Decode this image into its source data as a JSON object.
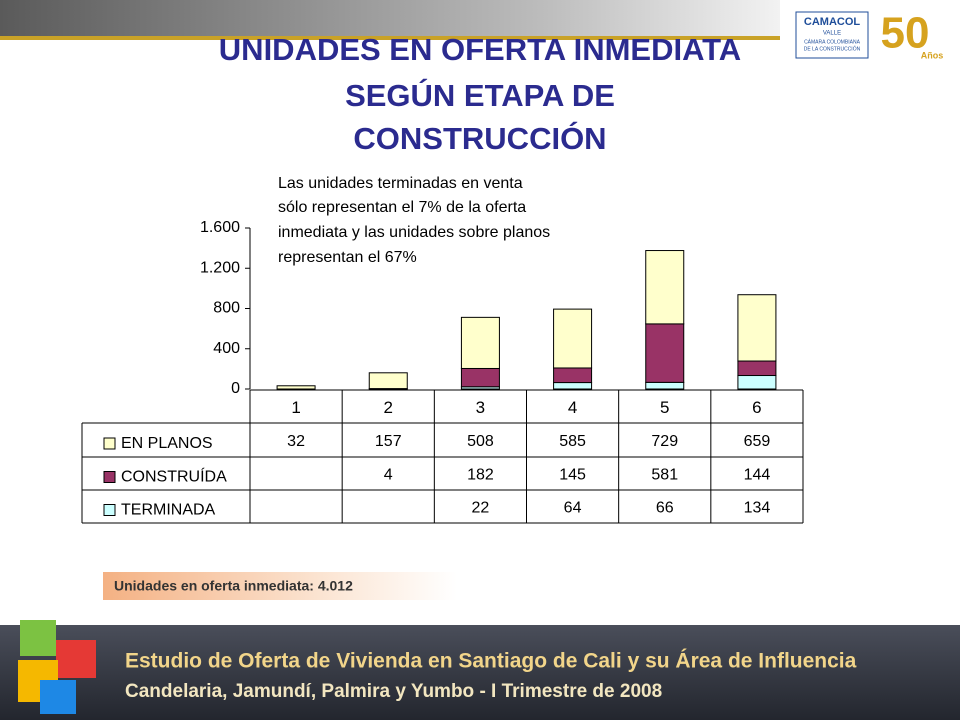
{
  "chart_data": {
    "type": "bar",
    "stacked": true,
    "title": [
      "UNIDADES EN OFERTA INMEDIATA",
      "SEGÚN ETAPA DE",
      "CONSTRUCCIÓN"
    ],
    "annotation": [
      "Las unidades terminadas en venta",
      "sólo representan el 7% de la oferta",
      "inmediata y las unidades sobre planos",
      "representan el 67%"
    ],
    "categories": [
      "1",
      "2",
      "3",
      "4",
      "5",
      "6"
    ],
    "series": [
      {
        "name": "EN PLANOS",
        "color": "#ffffcc",
        "values": [
          32,
          157,
          508,
          585,
          729,
          659
        ]
      },
      {
        "name": "CONSTRUÍDA",
        "color": "#993366",
        "values": [
          null,
          4,
          182,
          145,
          581,
          144
        ]
      },
      {
        "name": "TERMINADA",
        "color": "#ccffff",
        "values": [
          null,
          null,
          22,
          64,
          66,
          134
        ]
      }
    ],
    "ylim": [
      0,
      1600
    ],
    "yticks": [
      0,
      400,
      800,
      {
        "value": 1200,
        "label": "1.200"
      },
      {
        "value": 1600,
        "label": "1.600"
      }
    ],
    "grid": false
  },
  "summary": "Unidades en oferta inmediata: 4.012",
  "logo": {
    "name": "CAMACOL",
    "region": "VALLE",
    "subtitle": [
      "CÁMARA COLOMBIANA",
      "DE LA CONSTRUCCIÓN"
    ],
    "anniversary": "50",
    "anniversary_unit": "Años"
  },
  "banner": {
    "line1": "Estudio de Oferta de Vivienda en Santiago de Cali y su Área de Influencia",
    "line2": "Candelaria, Jamundí, Palmira y Yumbo - I Trimestre de 2008"
  }
}
